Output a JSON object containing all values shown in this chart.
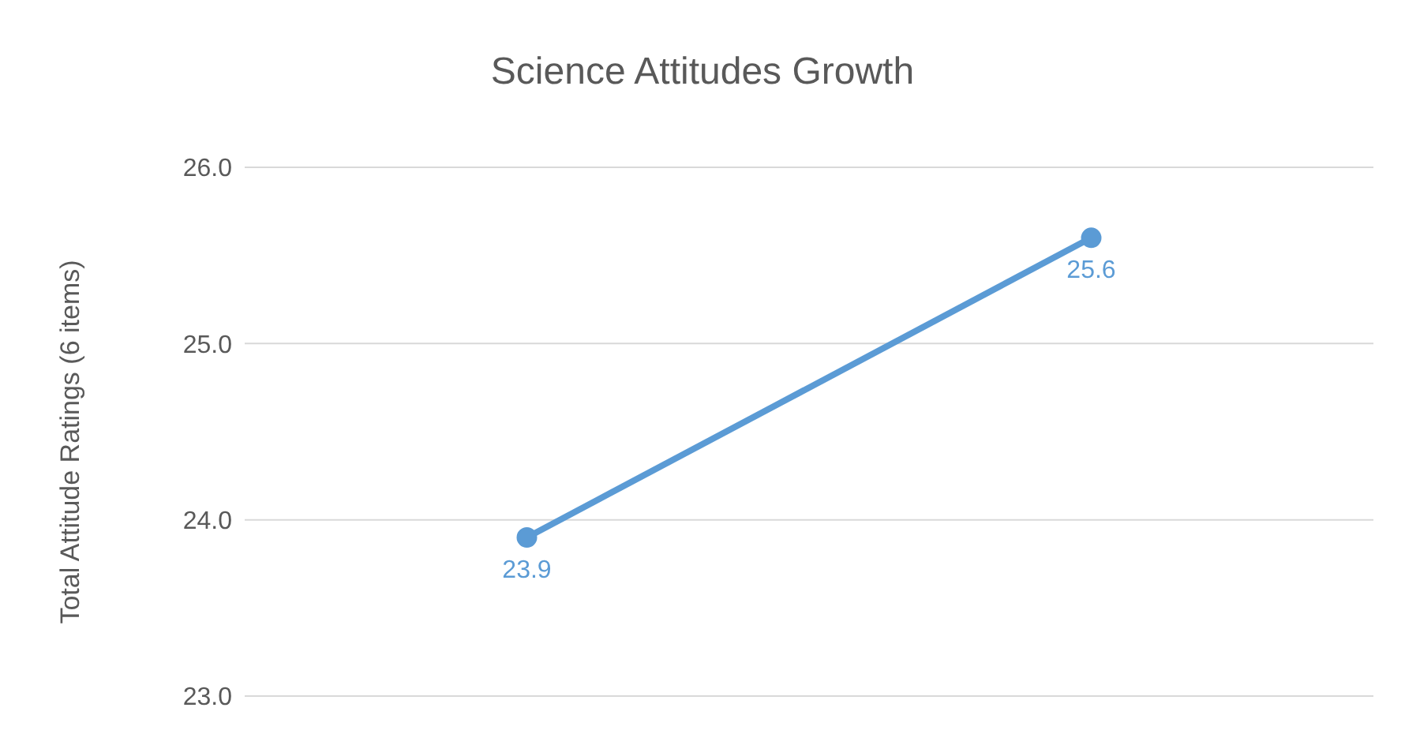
{
  "chart_data": {
    "type": "line",
    "title": "Science Attitudes Growth",
    "ylabel": "Total Attitude Ratings (6 items)",
    "categories": [
      null,
      null
    ],
    "series": [
      {
        "color": "#5b9bd5",
        "values": [
          23.9,
          25.6
        ]
      }
    ],
    "ylim": [
      23,
      26
    ],
    "yticks": [
      {
        "value": 23,
        "label": "23.0"
      },
      {
        "value": 24,
        "label": "24.0"
      },
      {
        "value": 25,
        "label": "25.0"
      },
      {
        "value": 26,
        "label": "26.0"
      }
    ],
    "grid": "y",
    "legend": false,
    "marker": "circle",
    "line_style": "solid",
    "data_labels": true,
    "tick_labels": "y"
  }
}
